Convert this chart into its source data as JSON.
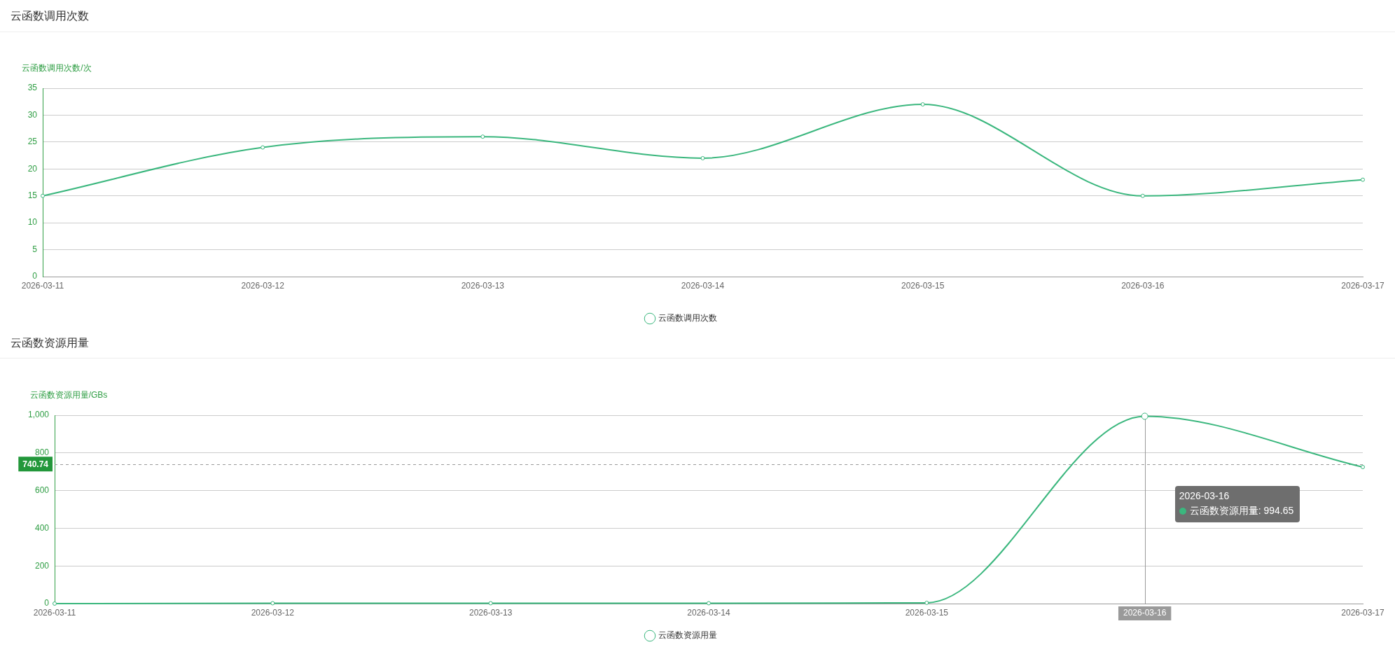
{
  "chart_data": [
    {
      "type": "line",
      "title": "云函数调用次数",
      "ylabel": "云函数调用次数/次",
      "categories": [
        "2026-03-11",
        "2026-03-12",
        "2026-03-13",
        "2026-03-14",
        "2026-03-15",
        "2026-03-16",
        "2026-03-17"
      ],
      "series": [
        {
          "name": "云函数调用次数",
          "color": "#3bb77e",
          "values": [
            15,
            24,
            26,
            22,
            32,
            15,
            18
          ]
        }
      ],
      "ylim": [
        0,
        35
      ],
      "yticks": [
        0,
        5,
        10,
        15,
        20,
        25,
        30,
        35
      ],
      "grid": "y",
      "legend": "bottom",
      "marker": "circle"
    },
    {
      "type": "line",
      "title": "云函数资源用量",
      "ylabel": "云函数资源用量/GBs",
      "categories": [
        "2026-03-11",
        "2026-03-12",
        "2026-03-13",
        "2026-03-14",
        "2026-03-15",
        "2026-03-16",
        "2026-03-17"
      ],
      "series": [
        {
          "name": "云函数资源用量",
          "color": "#3bb77e",
          "values": [
            0,
            2,
            2,
            2,
            4,
            994.65,
            725
          ]
        }
      ],
      "ylim": [
        0,
        1000
      ],
      "yticks": [
        0,
        200,
        400,
        600,
        800,
        {
          "value": 1000,
          "label": "1,000"
        }
      ],
      "grid": "y",
      "legend": "bottom",
      "marker": "circle",
      "ref_lines": [
        {
          "axis": "y",
          "value": 740.74,
          "label": "740.74",
          "color": "#999999",
          "line_style": "dashed"
        },
        {
          "axis": "x",
          "value": "2026-03-16",
          "color": "#9a9a9a"
        }
      ],
      "annotations": [
        "2026-03-16",
        "云函数资源用量: 994.65"
      ]
    }
  ]
}
